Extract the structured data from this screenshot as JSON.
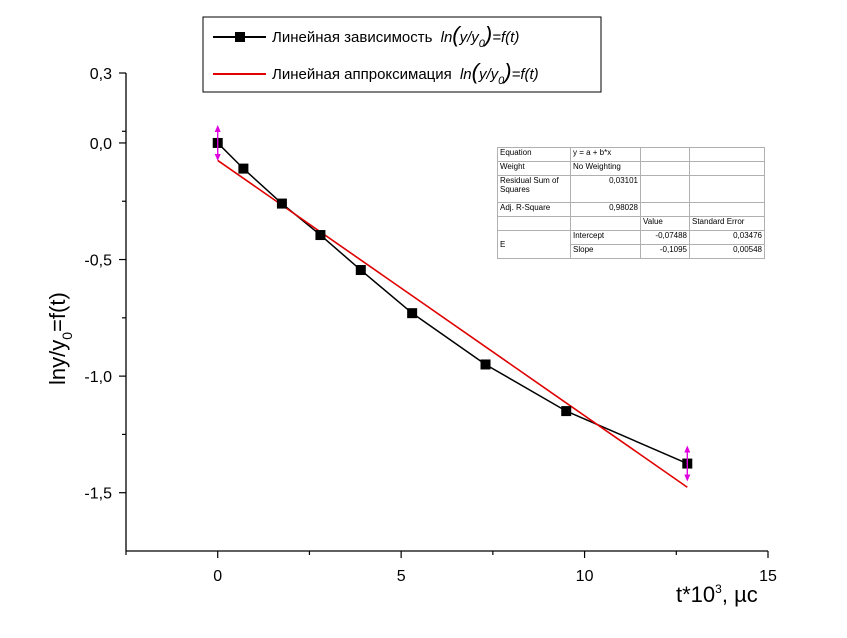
{
  "chart_data": {
    "type": "line",
    "xlabel": "t*10",
    "xlabel_sup": "3",
    "xlabel_unit": ", µс",
    "ylabel": "lny/y",
    "ylabel_sub": "0",
    "ylabel_tail": "=f(t)",
    "xlim": [
      -2.5,
      15
    ],
    "ylim": [
      -1.75,
      0.3
    ],
    "xticks": [
      {
        "v": 0,
        "label": "0"
      },
      {
        "v": 5,
        "label": "5"
      },
      {
        "v": 10,
        "label": "10"
      },
      {
        "v": 15,
        "label": "15"
      }
    ],
    "yticks": [
      {
        "v": 0.3,
        "label": "0,3"
      },
      {
        "v": 0,
        "label": "0,0"
      },
      {
        "v": -0.5,
        "label": "-0,5"
      },
      {
        "v": -1,
        "label": "-1,0"
      },
      {
        "v": -1.5,
        "label": "-1,5"
      }
    ],
    "series": [
      {
        "name": "Линейная зависимость",
        "legend_formula": "ln(y/y0)=f(t)",
        "color": "#000000",
        "marker": "square",
        "x": [
          0,
          0.7,
          1.75,
          2.8,
          3.9,
          5.3,
          7.3,
          9.5,
          12.8
        ],
        "y": [
          0.0,
          -0.11,
          -0.26,
          -0.395,
          -0.545,
          -0.73,
          -0.95,
          -1.15,
          -1.375
        ]
      },
      {
        "name": "Линейная аппроксимация",
        "legend_formula": "ln(y/y0)=f(t)",
        "color": "#e00000",
        "x": [
          0,
          12.8
        ],
        "y": [
          -0.07488,
          -1.47648
        ]
      }
    ],
    "error_markers": [
      {
        "x": 0,
        "y": 0
      },
      {
        "x": 12.8,
        "y": -1.375
      }
    ],
    "legend_placement": "top"
  },
  "legend": {
    "item1": "Линейная зависимость",
    "item2": "Линейная аппроксимация",
    "formula_ln": "ln",
    "formula_y": "y/y",
    "formula_sub": "0",
    "formula_tail": "=f(t)"
  },
  "stats_table": {
    "equation_label": "Equation",
    "equation_value": "y = a + b*x",
    "weight_label": "Weight",
    "weight_value": "No Weighting",
    "rss_label": "Residual Sum of Squares",
    "rss_value": "0,03101",
    "adjr_label": "Adj. R-Square",
    "adjr_value": "0,98028",
    "value_header": "Value",
    "stderr_header": "Standard Error",
    "row_label": "E",
    "intercept_label": "Intercept",
    "intercept_value": "-0,07488",
    "intercept_err": "0,03476",
    "slope_label": "Slope",
    "slope_value": "-0,1095",
    "slope_err": "0,00548"
  }
}
